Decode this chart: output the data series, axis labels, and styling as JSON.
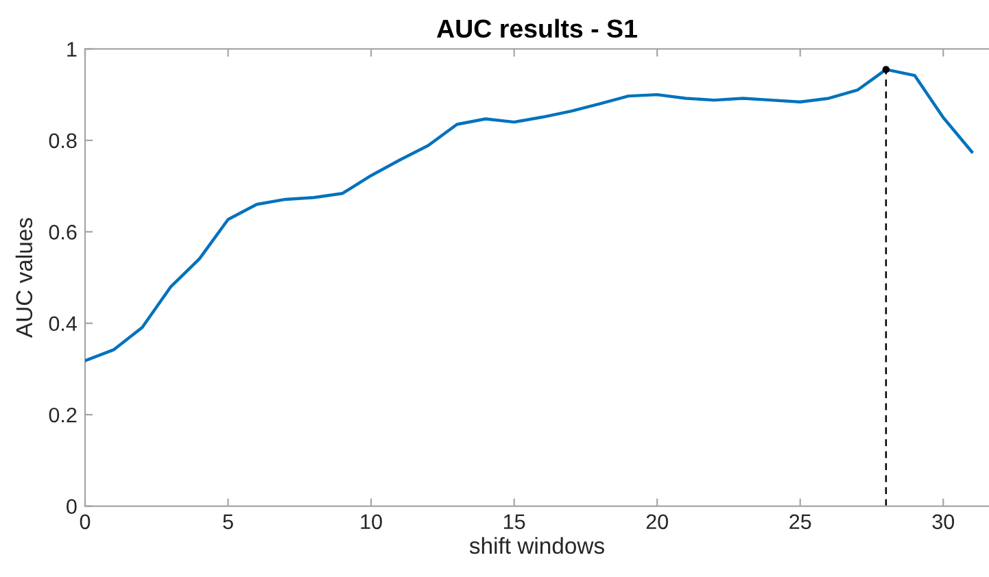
{
  "chart_data": {
    "type": "line",
    "title": "AUC results - S1",
    "xlabel": "shift windows",
    "ylabel": "AUC values",
    "xlim": [
      0,
      31.6
    ],
    "xticks": [
      0,
      5,
      10,
      15,
      20,
      25,
      30
    ],
    "ylim": [
      0,
      1
    ],
    "yticks": [
      0,
      0.2,
      0.4,
      0.6,
      0.8,
      1
    ],
    "series": [
      {
        "x": [
          0,
          1,
          2,
          3,
          4,
          5,
          6,
          7,
          8,
          9,
          10,
          11,
          12,
          13,
          14,
          15,
          16,
          17,
          18,
          19,
          20,
          21,
          22,
          23,
          24,
          25,
          26,
          27,
          28,
          29,
          30,
          31
        ],
        "values": [
          0.318,
          0.342,
          0.391,
          0.48,
          0.541,
          0.627,
          0.66,
          0.671,
          0.675,
          0.684,
          0.723,
          0.757,
          0.789,
          0.835,
          0.847,
          0.84,
          0.851,
          0.864,
          0.88,
          0.897,
          0.9,
          0.892,
          0.888,
          0.892,
          0.888,
          0.884,
          0.892,
          0.91,
          0.955,
          0.942,
          0.85,
          0.775
        ],
        "color": "#0072bd",
        "line_style": "solid"
      },
      {
        "type": "line",
        "x": [
          28,
          28
        ],
        "values": [
          0,
          0.955
        ],
        "color": "#000000",
        "line_style": "dashed"
      },
      {
        "type": "scatter",
        "x": [
          28
        ],
        "values": [
          0.955
        ],
        "color": "#000000",
        "marker": "circle"
      }
    ]
  }
}
